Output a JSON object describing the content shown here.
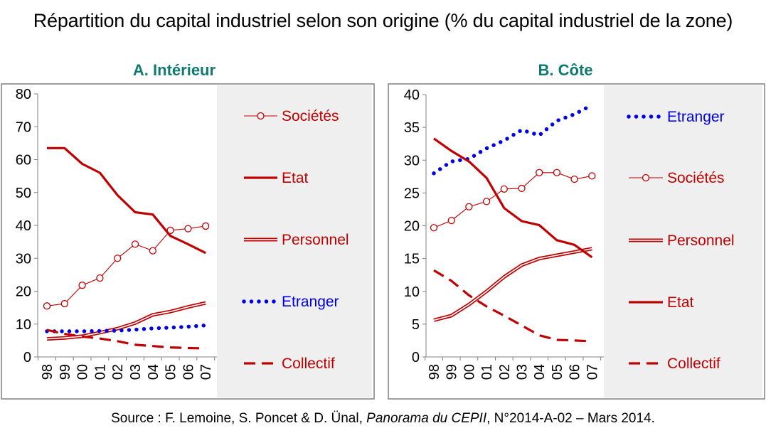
{
  "title": "Répartition du capital industriel selon son origine (% du capital industriel de la zone)",
  "source": {
    "prefix": "Source : F. Lemoine, S. Poncet & D. Ünal, ",
    "publication": "Panorama du CEPII",
    "suffix": ", N°2014-A-02 – Mars 2014."
  },
  "colors": {
    "red": "#c00000",
    "blue": "#0000e6",
    "panel_title": "#117a70",
    "legend_bg": "#efefef"
  },
  "chart_data": [
    {
      "type": "line",
      "title": "A. Intérieur",
      "categories": [
        "98",
        "99",
        "00",
        "01",
        "02",
        "03",
        "04",
        "05",
        "06",
        "07"
      ],
      "ylim": [
        0,
        80
      ],
      "yticks": [
        "0",
        "10",
        "20",
        "30",
        "40",
        "50",
        "60",
        "70",
        "80"
      ],
      "legend_position": "right",
      "series": [
        {
          "name": "Sociétés",
          "style": "line-circles",
          "values": [
            15.5,
            16.2,
            21.8,
            24,
            30,
            34.3,
            32.3,
            38.5,
            39,
            39.8
          ]
        },
        {
          "name": "Etat",
          "style": "solid-thick",
          "values": [
            63.5,
            63.5,
            58.7,
            56,
            49.2,
            44,
            43.3,
            36.8,
            34.3,
            31.6
          ]
        },
        {
          "name": "Personnel",
          "style": "double-line",
          "values": [
            5.5,
            5.8,
            6.3,
            7.4,
            8.6,
            10.3,
            12.8,
            13.8,
            15.2,
            16.4
          ]
        },
        {
          "name": "Etranger",
          "style": "dotted",
          "values": [
            7.8,
            7.8,
            7.8,
            7.9,
            8,
            8.3,
            8.7,
            8.9,
            9.2,
            9.6
          ]
        },
        {
          "name": "Collectif",
          "style": "dashed",
          "values": [
            8.2,
            7,
            6.2,
            5.6,
            4.8,
            3.7,
            3.3,
            2.9,
            2.7,
            2.6
          ]
        }
      ]
    },
    {
      "type": "line",
      "title": "B. Côte",
      "categories": [
        "98",
        "99",
        "00",
        "01",
        "02",
        "03",
        "04",
        "05",
        "06",
        "07"
      ],
      "ylim": [
        0,
        40
      ],
      "yticks": [
        "0",
        "5",
        "10",
        "15",
        "20",
        "25",
        "30",
        "35",
        "40"
      ],
      "legend_position": "right",
      "series": [
        {
          "name": "Etranger",
          "style": "dotted",
          "values": [
            28,
            29.8,
            30.2,
            31.8,
            33,
            34.6,
            33.8,
            36,
            37,
            38.4
          ]
        },
        {
          "name": "Sociétés",
          "style": "line-circles",
          "values": [
            19.7,
            20.8,
            22.9,
            23.7,
            25.6,
            25.7,
            28.1,
            28.1,
            27.1,
            27.6
          ]
        },
        {
          "name": "Personnel",
          "style": "double-line",
          "values": [
            5.6,
            6.3,
            8,
            10,
            12.2,
            14,
            15,
            15.5,
            16,
            16.5
          ]
        },
        {
          "name": "Etat",
          "style": "solid-thick",
          "values": [
            33.3,
            31.4,
            29.8,
            27.3,
            22.7,
            20.7,
            20.1,
            17.8,
            17.1,
            15.2
          ]
        },
        {
          "name": "Collectif",
          "style": "dashed",
          "values": [
            13.2,
            11.6,
            9.4,
            7.7,
            6.3,
            4.8,
            3.3,
            2.6,
            2.5,
            2.4
          ]
        }
      ]
    }
  ]
}
